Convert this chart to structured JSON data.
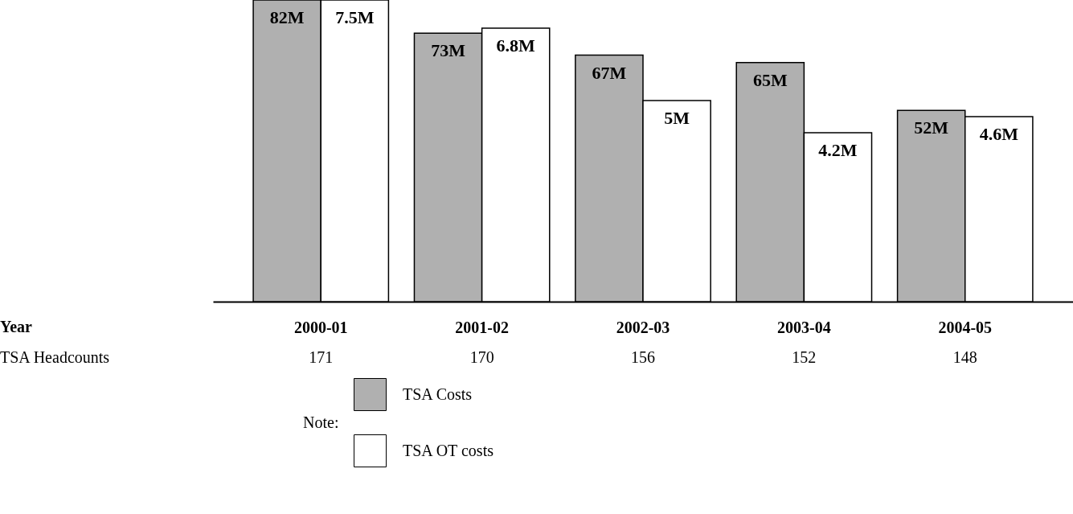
{
  "chart_data": {
    "type": "bar",
    "legend_title": "Note:",
    "legend": "bottom left",
    "tick_labels": "x",
    "categories": [
      "2000-01",
      "2001-02",
      "2002-03",
      "2003-04",
      "2004-05"
    ],
    "series": [
      {
        "name": "TSA Costs",
        "color": "#b0b0b0",
        "values": [
          82,
          73,
          67,
          65,
          52
        ],
        "value_labels": [
          "82M",
          "73M",
          "67M",
          "65M",
          "52M"
        ]
      },
      {
        "name": "TSA OT costs",
        "color": "#ffffff",
        "values": [
          7.5,
          6.8,
          5,
          4.2,
          4.6
        ],
        "axis": "y2",
        "value_labels": [
          "7.5M",
          "6.8M",
          "5M",
          "4.2M",
          "4.6M"
        ]
      }
    ],
    "annotations": [
      "Year",
      "TSA Headcounts",
      "171",
      "170",
      "156",
      "152",
      "148"
    ]
  }
}
